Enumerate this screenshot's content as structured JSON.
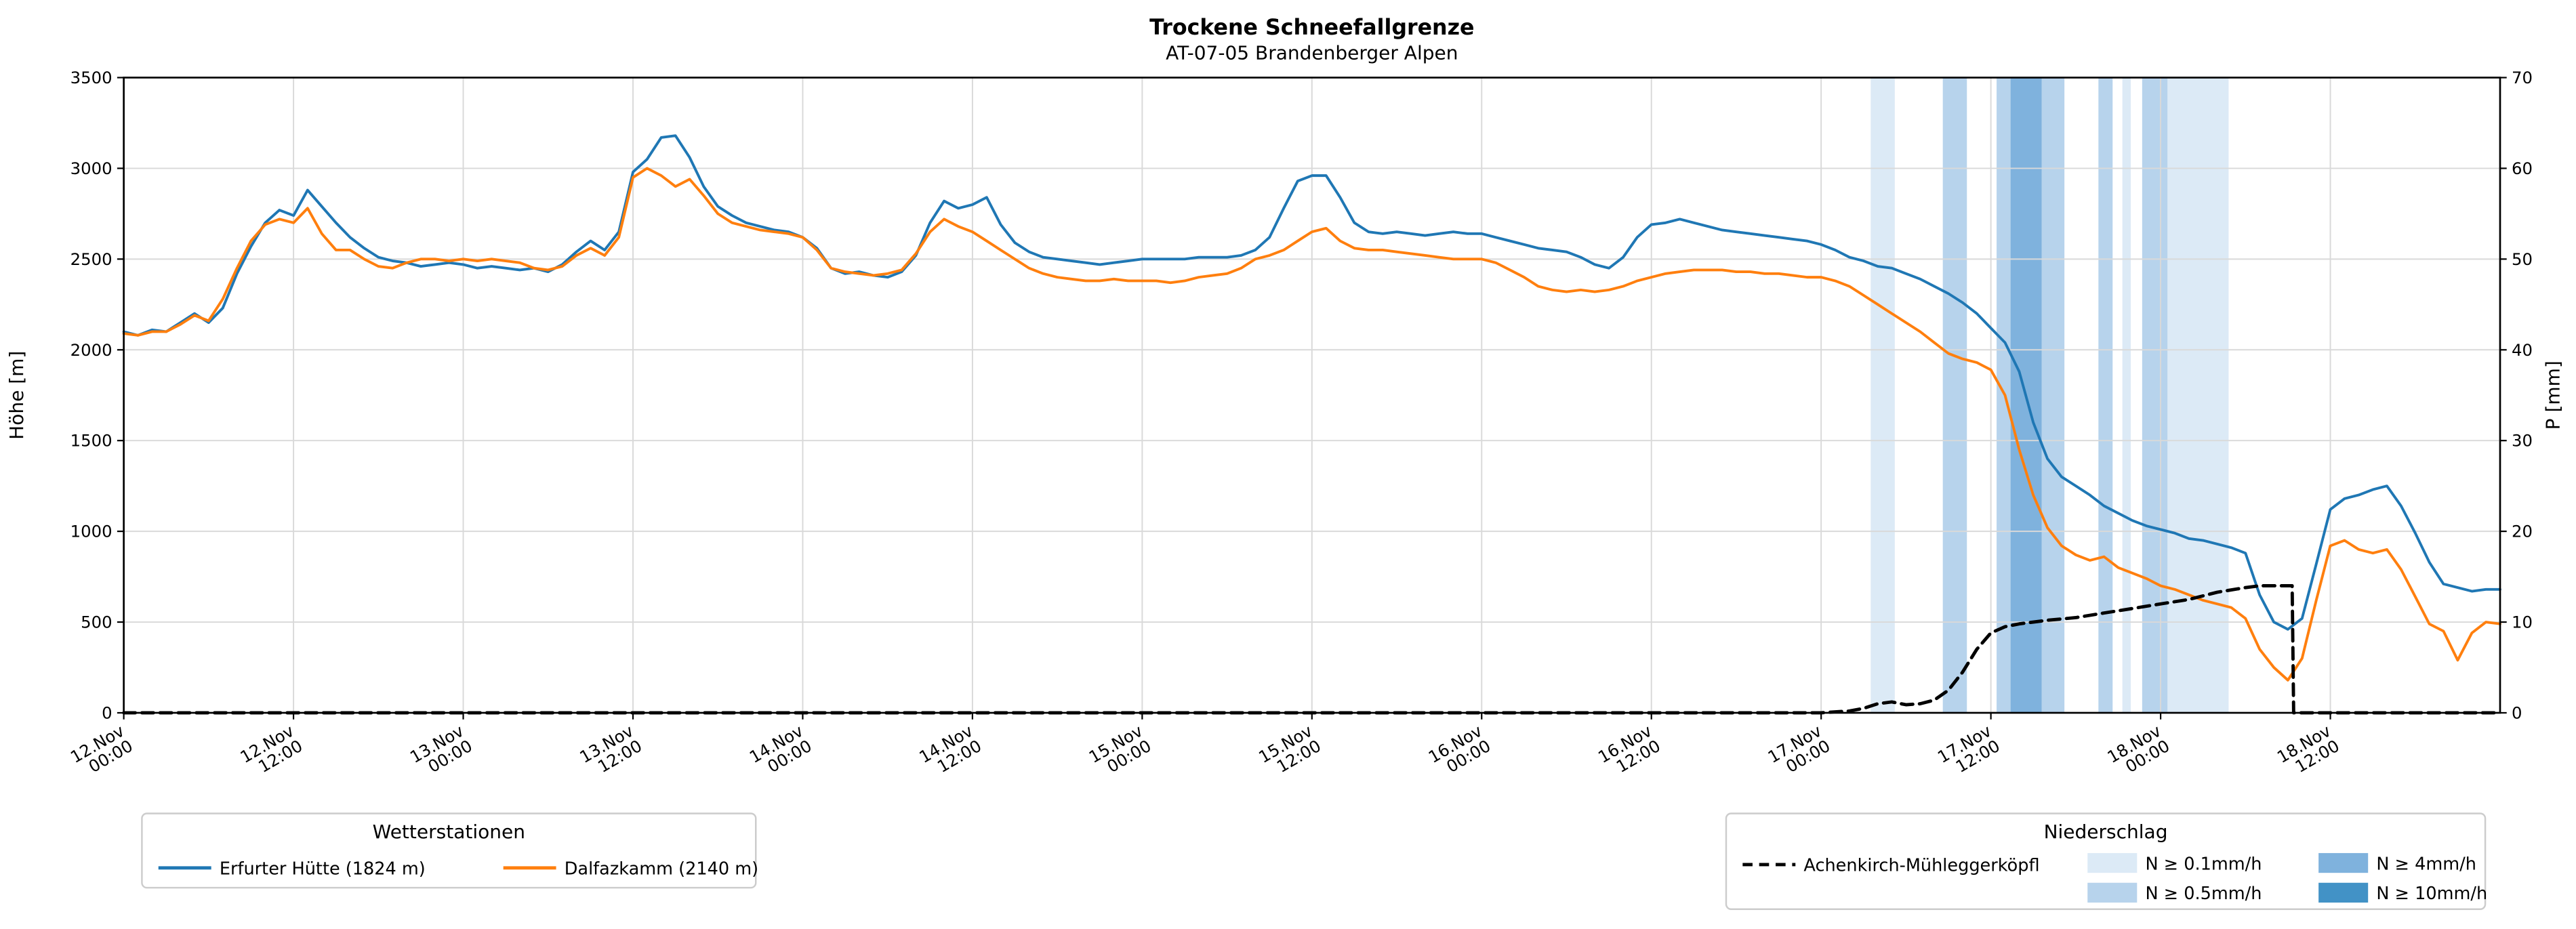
{
  "header": {
    "title": "Trockene Schneefallgrenze",
    "subtitle": "AT-07-05 Brandenberger Alpen"
  },
  "axes": {
    "left_label": "Höhe [m]",
    "right_label": "P [mm]",
    "left_ticks": [
      "0",
      "500",
      "1000",
      "1500",
      "2000",
      "2500",
      "3000",
      "3500"
    ],
    "right_ticks": [
      "0",
      "10",
      "20",
      "30",
      "40",
      "50",
      "60",
      "70"
    ],
    "x_ticks": [
      {
        "h": 0,
        "date": "12.Nov",
        "time": "00:00"
      },
      {
        "h": 12,
        "date": "12.Nov",
        "time": "12:00"
      },
      {
        "h": 24,
        "date": "13.Nov",
        "time": "00:00"
      },
      {
        "h": 36,
        "date": "13.Nov",
        "time": "12:00"
      },
      {
        "h": 48,
        "date": "14.Nov",
        "time": "00:00"
      },
      {
        "h": 60,
        "date": "14.Nov",
        "time": "12:00"
      },
      {
        "h": 72,
        "date": "15.Nov",
        "time": "00:00"
      },
      {
        "h": 84,
        "date": "15.Nov",
        "time": "12:00"
      },
      {
        "h": 96,
        "date": "16.Nov",
        "time": "00:00"
      },
      {
        "h": 108,
        "date": "16.Nov",
        "time": "12:00"
      },
      {
        "h": 120,
        "date": "17.Nov",
        "time": "00:00"
      },
      {
        "h": 132,
        "date": "17.Nov",
        "time": "12:00"
      },
      {
        "h": 144,
        "date": "18.Nov",
        "time": "00:00"
      },
      {
        "h": 156,
        "date": "18.Nov",
        "time": "12:00"
      }
    ]
  },
  "chart_data": {
    "type": "line",
    "title": "Trockene Schneefallgrenze",
    "subtitle": "AT-07-05 Brandenberger Alpen",
    "x_range": [
      0,
      168
    ],
    "x_unit_hours_per_point": 1,
    "left_ylim": [
      0,
      3500
    ],
    "right_ylim": [
      0,
      70
    ],
    "grid": true,
    "band_colors": {
      "0.1": "#dceaf6",
      "0.5": "#b7d3ec",
      "4": "#7fb2dd",
      "10": "#4292c6"
    },
    "series": [
      {
        "name": "Erfurter Hütte (1824 m)",
        "slug": "erfurter-huette",
        "color": "#1f77b4",
        "axis": "left",
        "width": 1.6,
        "values": [
          2100,
          2080,
          2110,
          2100,
          2150,
          2200,
          2150,
          2230,
          2420,
          2570,
          2700,
          2770,
          2740,
          2880,
          2790,
          2700,
          2620,
          2560,
          2510,
          2490,
          2480,
          2460,
          2470,
          2480,
          2470,
          2450,
          2460,
          2450,
          2440,
          2450,
          2430,
          2470,
          2540,
          2600,
          2550,
          2650,
          2980,
          3050,
          3170,
          3180,
          3060,
          2900,
          2790,
          2740,
          2700,
          2680,
          2660,
          2650,
          2620,
          2560,
          2450,
          2420,
          2430,
          2410,
          2400,
          2430,
          2520,
          2700,
          2820,
          2780,
          2800,
          2840,
          2690,
          2590,
          2540,
          2510,
          2500,
          2490,
          2480,
          2470,
          2480,
          2490,
          2500,
          2500,
          2500,
          2500,
          2510,
          2510,
          2510,
          2520,
          2550,
          2620,
          2780,
          2930,
          2960,
          2960,
          2840,
          2700,
          2650,
          2640,
          2650,
          2640,
          2630,
          2640,
          2650,
          2640,
          2640,
          2620,
          2600,
          2580,
          2560,
          2550,
          2540,
          2510,
          2470,
          2450,
          2510,
          2620,
          2690,
          2700,
          2720,
          2700,
          2680,
          2660,
          2650,
          2640,
          2630,
          2620,
          2610,
          2600,
          2580,
          2550,
          2510,
          2490,
          2460,
          2450,
          2420,
          2390,
          2350,
          2310,
          2260,
          2200,
          2120,
          2040,
          1880,
          1600,
          1400,
          1300,
          1250,
          1200,
          1140,
          1100,
          1060,
          1030,
          1010,
          990,
          960,
          950,
          930,
          910,
          880,
          650,
          500,
          460,
          520,
          820,
          1120,
          1180,
          1200,
          1230,
          1250,
          1140,
          990,
          830,
          710,
          690,
          670,
          680,
          680
        ]
      },
      {
        "name": "Dalfazkamm (2140 m)",
        "slug": "dalfazkamm",
        "color": "#ff7f0e",
        "axis": "left",
        "width": 1.6,
        "values": [
          2090,
          2080,
          2100,
          2100,
          2140,
          2190,
          2160,
          2280,
          2450,
          2600,
          2690,
          2720,
          2700,
          2780,
          2640,
          2550,
          2550,
          2500,
          2460,
          2450,
          2480,
          2500,
          2500,
          2490,
          2500,
          2490,
          2500,
          2490,
          2480,
          2450,
          2440,
          2460,
          2520,
          2560,
          2520,
          2620,
          2950,
          3000,
          2960,
          2900,
          2940,
          2850,
          2750,
          2700,
          2680,
          2660,
          2650,
          2640,
          2620,
          2550,
          2450,
          2430,
          2420,
          2410,
          2420,
          2440,
          2530,
          2650,
          2720,
          2680,
          2650,
          2600,
          2550,
          2500,
          2450,
          2420,
          2400,
          2390,
          2380,
          2380,
          2390,
          2380,
          2380,
          2380,
          2370,
          2380,
          2400,
          2410,
          2420,
          2450,
          2500,
          2520,
          2550,
          2600,
          2650,
          2670,
          2600,
          2560,
          2550,
          2550,
          2540,
          2530,
          2520,
          2510,
          2500,
          2500,
          2500,
          2480,
          2440,
          2400,
          2350,
          2330,
          2320,
          2330,
          2320,
          2330,
          2350,
          2380,
          2400,
          2420,
          2430,
          2440,
          2440,
          2440,
          2430,
          2430,
          2420,
          2420,
          2410,
          2400,
          2400,
          2380,
          2350,
          2300,
          2250,
          2200,
          2150,
          2100,
          2040,
          1980,
          1950,
          1930,
          1890,
          1750,
          1450,
          1200,
          1020,
          920,
          870,
          840,
          860,
          800,
          770,
          740,
          700,
          680,
          650,
          620,
          600,
          580,
          520,
          350,
          250,
          180,
          300,
          620,
          920,
          950,
          900,
          880,
          900,
          790,
          640,
          490,
          450,
          290,
          440,
          500,
          490
        ]
      },
      {
        "name": "Achenkirch-Mühleggerköpfl",
        "slug": "achenkirch-muehleggerkoepfl",
        "color": "#000000",
        "axis": "right",
        "width": 2,
        "dash": "7 4",
        "x": [
          0,
          120,
          121,
          122,
          123,
          124,
          125,
          126,
          127,
          128,
          129,
          130,
          131,
          132,
          133,
          134,
          135,
          136,
          138,
          140,
          142,
          144,
          146,
          148,
          150,
          151,
          153,
          153.3,
          153.4,
          168
        ],
        "values": [
          0,
          0,
          0.1,
          0.2,
          0.5,
          1.0,
          1.2,
          0.9,
          1.0,
          1.4,
          2.5,
          4.5,
          7.0,
          8.8,
          9.5,
          9.8,
          10.0,
          10.2,
          10.5,
          11.0,
          11.5,
          12.0,
          12.5,
          13.3,
          13.8,
          14.0,
          14.0,
          14.0,
          0,
          0
        ]
      }
    ],
    "precip_bands": [
      {
        "start": 123.5,
        "end": 125.2,
        "level": "0.1"
      },
      {
        "start": 128.6,
        "end": 130.3,
        "level": "0.5"
      },
      {
        "start": 132.4,
        "end": 133.4,
        "level": "0.5"
      },
      {
        "start": 133.4,
        "end": 135.6,
        "level": "4"
      },
      {
        "start": 135.6,
        "end": 137.2,
        "level": "0.5"
      },
      {
        "start": 139.6,
        "end": 140.6,
        "level": "0.5"
      },
      {
        "start": 141.3,
        "end": 141.9,
        "level": "0.1"
      },
      {
        "start": 142.7,
        "end": 144.5,
        "level": "0.5"
      },
      {
        "start": 144.5,
        "end": 148.8,
        "level": "0.1"
      }
    ]
  },
  "legends": {
    "stations": {
      "title": "Wetterstationen",
      "entries": [
        {
          "label": "Erfurter Hütte (1824 m)",
          "color": "#1f77b4"
        },
        {
          "label": "Dalfazkamm (2140 m)",
          "color": "#ff7f0e"
        }
      ]
    },
    "precip": {
      "title": "Niederschlag",
      "line_entry": {
        "label": "Achenkirch-Mühleggerköpfl",
        "color": "#000000"
      },
      "band_entries": [
        {
          "label": "N ≥ 0.1mm/h",
          "level": "0.1",
          "color": "#dceaf6"
        },
        {
          "label": "N ≥ 0.5mm/h",
          "level": "0.5",
          "color": "#b7d3ec"
        },
        {
          "label": "N ≥ 4mm/h",
          "level": "4",
          "color": "#7fb2dd"
        },
        {
          "label": "N ≥ 10mm/h",
          "level": "10",
          "color": "#4292c6"
        }
      ]
    }
  }
}
